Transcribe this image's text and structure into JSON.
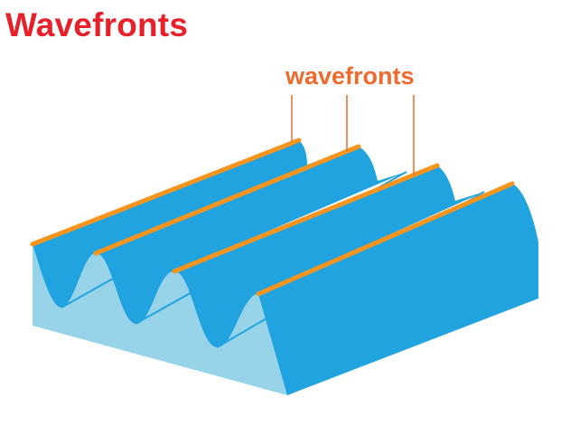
{
  "title": "Wavefronts",
  "label": "wavefronts",
  "colors": {
    "title": "#e8202a",
    "label": "#ef6a2c",
    "wave_top": "#21a3df",
    "wave_side": "#97d4ea",
    "wavefront_line": "#f7941d",
    "pointer_line": "#ef6a2c"
  }
}
